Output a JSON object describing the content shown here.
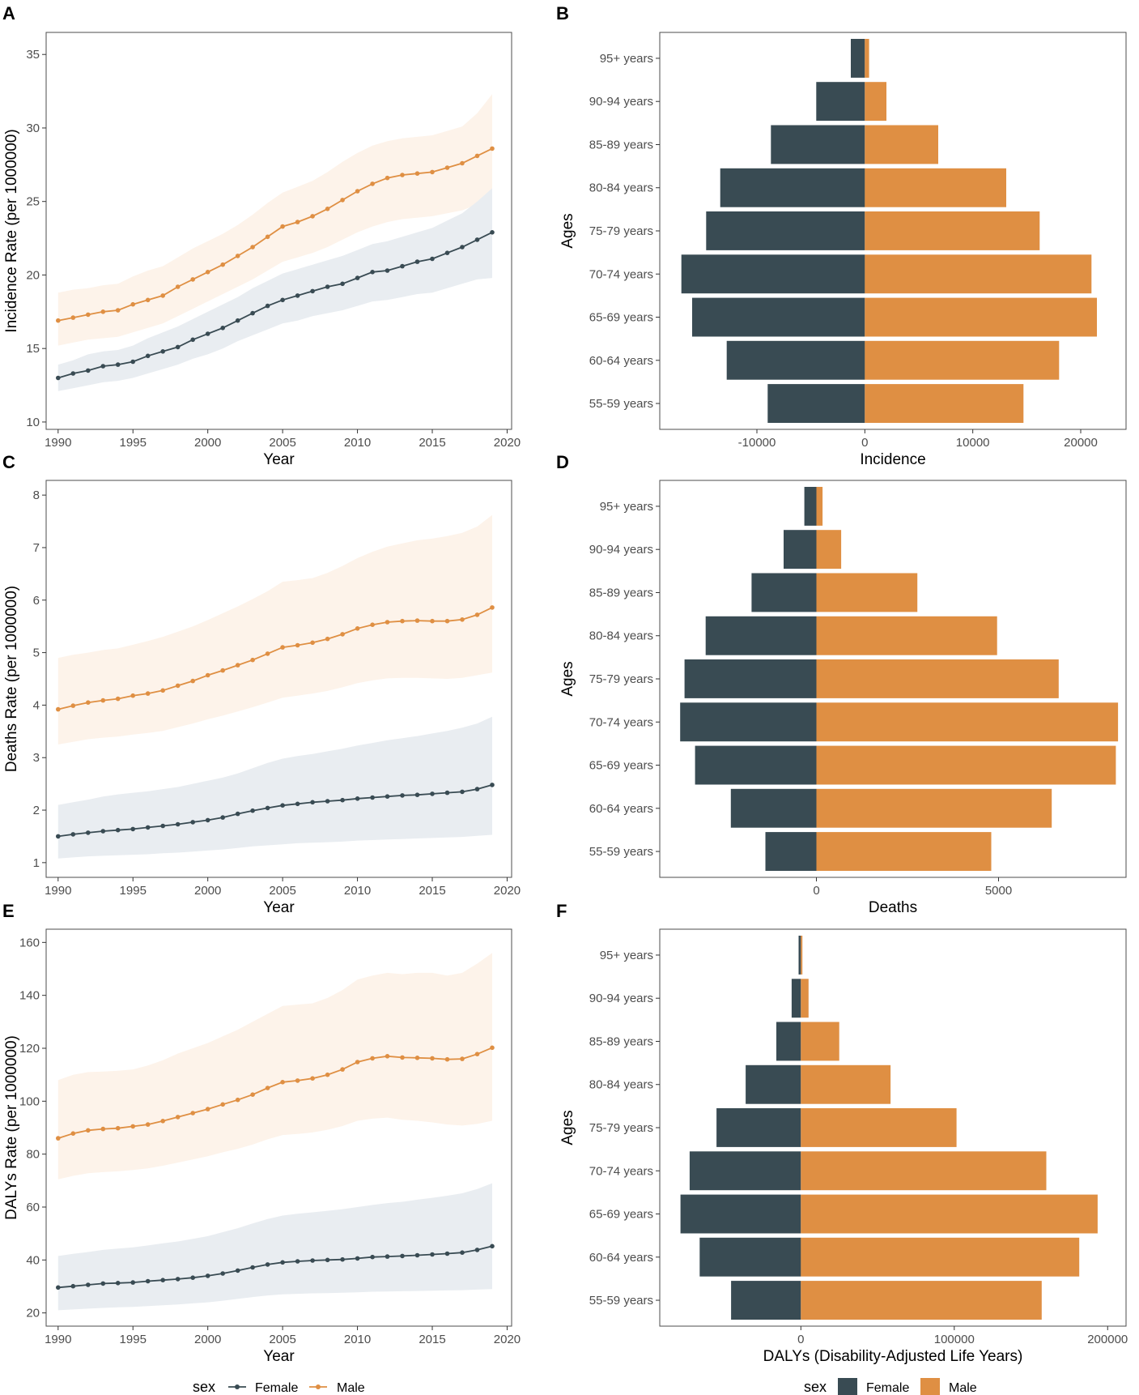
{
  "colors": {
    "female": "#394b53",
    "male": "#df8f43",
    "female_ribbon": "#e9edf1",
    "male_ribbon": "#fdf3ea"
  },
  "legends": {
    "line": {
      "title": "sex",
      "items": [
        "Female",
        "Male"
      ]
    },
    "bar": {
      "title": "sex",
      "items": [
        "Female",
        "Male"
      ]
    }
  },
  "chart_data": [
    {
      "panel": "A",
      "type": "line",
      "xlabel": "Year",
      "ylabel": "Incidence Rate (per 1000000)",
      "xlim": [
        1989.2,
        2020.3
      ],
      "ylim": [
        9.5,
        36.5
      ],
      "xticks": [
        1990,
        1995,
        2000,
        2005,
        2010,
        2015,
        2020
      ],
      "yticks": [
        10,
        15,
        20,
        25,
        30,
        35
      ],
      "x": [
        1990,
        1991,
        1992,
        1993,
        1994,
        1995,
        1996,
        1997,
        1998,
        1999,
        2000,
        2001,
        2002,
        2003,
        2004,
        2005,
        2006,
        2007,
        2008,
        2009,
        2010,
        2011,
        2012,
        2013,
        2014,
        2015,
        2016,
        2017,
        2018,
        2019
      ],
      "series": [
        {
          "name": "Female",
          "values": [
            13.0,
            13.3,
            13.5,
            13.8,
            13.9,
            14.1,
            14.5,
            14.8,
            15.1,
            15.6,
            16.0,
            16.4,
            16.9,
            17.4,
            17.9,
            18.3,
            18.6,
            18.9,
            19.2,
            19.4,
            19.8,
            20.2,
            20.3,
            20.6,
            20.9,
            21.1,
            21.5,
            21.9,
            22.4,
            22.9
          ],
          "lower": [
            12.1,
            12.3,
            12.5,
            12.7,
            12.8,
            13.0,
            13.3,
            13.6,
            13.9,
            14.3,
            14.6,
            15.0,
            15.5,
            15.9,
            16.3,
            16.7,
            16.9,
            17.2,
            17.4,
            17.6,
            17.9,
            18.2,
            18.3,
            18.5,
            18.7,
            18.8,
            19.1,
            19.4,
            19.7,
            19.8
          ],
          "upper": [
            13.9,
            14.2,
            14.6,
            14.8,
            14.9,
            15.2,
            15.7,
            16.1,
            16.5,
            17.0,
            17.5,
            18.0,
            18.5,
            19.1,
            19.6,
            20.1,
            20.4,
            20.7,
            21.0,
            21.3,
            21.7,
            22.1,
            22.3,
            22.6,
            22.9,
            23.2,
            23.7,
            24.2,
            25.0,
            25.9
          ]
        },
        {
          "name": "Male",
          "values": [
            16.9,
            17.1,
            17.3,
            17.5,
            17.6,
            18.0,
            18.3,
            18.6,
            19.2,
            19.7,
            20.2,
            20.7,
            21.3,
            21.9,
            22.6,
            23.3,
            23.6,
            24.0,
            24.5,
            25.1,
            25.7,
            26.2,
            26.6,
            26.8,
            26.9,
            27.0,
            27.3,
            27.6,
            28.1,
            28.6
          ],
          "lower": [
            15.2,
            15.4,
            15.6,
            15.7,
            15.8,
            16.1,
            16.4,
            16.7,
            17.2,
            17.7,
            18.2,
            18.7,
            19.2,
            19.7,
            20.3,
            20.9,
            21.2,
            21.5,
            21.9,
            22.4,
            22.9,
            23.3,
            23.6,
            23.8,
            23.9,
            24.0,
            24.2,
            24.4,
            24.8,
            25.1
          ],
          "upper": [
            18.8,
            19.0,
            19.1,
            19.3,
            19.4,
            19.9,
            20.3,
            20.6,
            21.2,
            21.8,
            22.3,
            22.8,
            23.4,
            24.1,
            24.9,
            25.6,
            26.0,
            26.4,
            27.0,
            27.7,
            28.3,
            28.8,
            29.1,
            29.3,
            29.4,
            29.5,
            29.8,
            30.1,
            31.0,
            32.3
          ]
        }
      ]
    },
    {
      "panel": "B",
      "type": "bar",
      "xlabel": "Incidence",
      "ylabel": "Ages",
      "xlim": [
        -19000,
        24200
      ],
      "xticks": [
        -10000,
        0,
        10000,
        20000
      ],
      "xtick_labels": [
        "-10000",
        "0",
        "10000",
        "20000"
      ],
      "categories": [
        "55-59 years",
        "60-64 years",
        "65-69 years",
        "70-74 years",
        "75-79 years",
        "80-84 years",
        "85-89 years",
        "90-94 years",
        "95+ years"
      ],
      "series": [
        {
          "name": "Female",
          "values": [
            -9000,
            -12800,
            -16000,
            -17000,
            -14700,
            -13400,
            -8700,
            -4500,
            -1300
          ]
        },
        {
          "name": "Male",
          "values": [
            14700,
            18000,
            21500,
            21000,
            16200,
            13100,
            6800,
            2000,
            400
          ]
        }
      ]
    },
    {
      "panel": "C",
      "type": "line",
      "xlabel": "Year",
      "ylabel": "Deaths Rate (per 1000000)",
      "xlim": [
        1989.2,
        2020.3
      ],
      "ylim": [
        0.72,
        8.28
      ],
      "xticks": [
        1990,
        1995,
        2000,
        2005,
        2010,
        2015,
        2020
      ],
      "yticks": [
        1,
        2,
        3,
        4,
        5,
        6,
        7,
        8
      ],
      "x": [
        1990,
        1991,
        1992,
        1993,
        1994,
        1995,
        1996,
        1997,
        1998,
        1999,
        2000,
        2001,
        2002,
        2003,
        2004,
        2005,
        2006,
        2007,
        2008,
        2009,
        2010,
        2011,
        2012,
        2013,
        2014,
        2015,
        2016,
        2017,
        2018,
        2019
      ],
      "series": [
        {
          "name": "Female",
          "values": [
            1.5,
            1.54,
            1.57,
            1.6,
            1.62,
            1.64,
            1.67,
            1.7,
            1.73,
            1.77,
            1.81,
            1.86,
            1.93,
            1.99,
            2.04,
            2.09,
            2.12,
            2.15,
            2.17,
            2.19,
            2.22,
            2.24,
            2.26,
            2.28,
            2.29,
            2.31,
            2.33,
            2.35,
            2.4,
            2.48
          ],
          "lower": [
            1.08,
            1.1,
            1.12,
            1.13,
            1.14,
            1.15,
            1.16,
            1.18,
            1.19,
            1.21,
            1.23,
            1.25,
            1.28,
            1.31,
            1.33,
            1.35,
            1.37,
            1.38,
            1.39,
            1.4,
            1.42,
            1.43,
            1.44,
            1.45,
            1.46,
            1.47,
            1.48,
            1.49,
            1.51,
            1.53
          ],
          "upper": [
            2.1,
            2.15,
            2.2,
            2.26,
            2.3,
            2.33,
            2.36,
            2.4,
            2.44,
            2.5,
            2.56,
            2.62,
            2.7,
            2.8,
            2.9,
            2.98,
            3.03,
            3.07,
            3.12,
            3.17,
            3.23,
            3.28,
            3.33,
            3.37,
            3.41,
            3.46,
            3.51,
            3.57,
            3.65,
            3.78
          ]
        },
        {
          "name": "Male",
          "values": [
            3.92,
            3.99,
            4.05,
            4.09,
            4.12,
            4.18,
            4.22,
            4.28,
            4.37,
            4.46,
            4.57,
            4.66,
            4.76,
            4.86,
            4.98,
            5.1,
            5.14,
            5.19,
            5.26,
            5.35,
            5.46,
            5.53,
            5.58,
            5.6,
            5.61,
            5.6,
            5.6,
            5.63,
            5.72,
            5.86
          ],
          "lower": [
            3.25,
            3.3,
            3.35,
            3.38,
            3.4,
            3.44,
            3.47,
            3.51,
            3.58,
            3.65,
            3.73,
            3.8,
            3.88,
            3.96,
            4.05,
            4.14,
            4.18,
            4.22,
            4.27,
            4.34,
            4.42,
            4.47,
            4.51,
            4.52,
            4.52,
            4.51,
            4.5,
            4.52,
            4.57,
            4.62
          ],
          "upper": [
            4.9,
            4.96,
            5.0,
            5.05,
            5.08,
            5.15,
            5.22,
            5.3,
            5.4,
            5.5,
            5.62,
            5.75,
            5.88,
            6.02,
            6.17,
            6.35,
            6.38,
            6.42,
            6.52,
            6.65,
            6.8,
            6.92,
            7.02,
            7.08,
            7.14,
            7.17,
            7.22,
            7.28,
            7.4,
            7.62
          ]
        }
      ]
    },
    {
      "panel": "D",
      "type": "bar",
      "xlabel": "Deaths",
      "ylabel": "Ages",
      "xlim": [
        -4300,
        8500
      ],
      "xticks": [
        0,
        5000
      ],
      "xtick_labels": [
        "0",
        "5000"
      ],
      "categories": [
        "55-59 years",
        "60-64 years",
        "65-69 years",
        "70-74 years",
        "75-79 years",
        "80-84 years",
        "85-89 years",
        "90-94 years",
        "95+ years"
      ],
      "series": [
        {
          "name": "Female",
          "values": [
            -1400,
            -2350,
            -3330,
            -3740,
            -3620,
            -3040,
            -1780,
            -900,
            -330
          ]
        },
        {
          "name": "Male",
          "values": [
            4800,
            6460,
            8220,
            8280,
            6650,
            4960,
            2770,
            680,
            170
          ]
        }
      ]
    },
    {
      "panel": "E",
      "type": "line",
      "xlabel": "Year",
      "ylabel": "DALYs Rate (per 1000000)",
      "xlim": [
        1989.2,
        2020.3
      ],
      "ylim": [
        15,
        165
      ],
      "xticks": [
        1990,
        1995,
        2000,
        2005,
        2010,
        2015,
        2020
      ],
      "yticks": [
        20,
        40,
        60,
        80,
        100,
        120,
        140,
        160
      ],
      "x": [
        1990,
        1991,
        1992,
        1993,
        1994,
        1995,
        1996,
        1997,
        1998,
        1999,
        2000,
        2001,
        2002,
        2003,
        2004,
        2005,
        2006,
        2007,
        2008,
        2009,
        2010,
        2011,
        2012,
        2013,
        2014,
        2015,
        2016,
        2017,
        2018,
        2019
      ],
      "series": [
        {
          "name": "Female",
          "values": [
            29.6,
            30.1,
            30.6,
            31.1,
            31.3,
            31.5,
            32.0,
            32.4,
            32.8,
            33.3,
            34.0,
            34.9,
            36.0,
            37.2,
            38.3,
            39.1,
            39.5,
            39.8,
            40.0,
            40.2,
            40.6,
            41.1,
            41.3,
            41.5,
            41.8,
            42.1,
            42.4,
            42.8,
            43.8,
            45.2
          ],
          "lower": [
            21.0,
            21.3,
            21.6,
            21.9,
            22.1,
            22.3,
            22.6,
            22.9,
            23.2,
            23.6,
            24.0,
            24.6,
            25.3,
            26.0,
            26.6,
            27.0,
            27.2,
            27.4,
            27.5,
            27.6,
            27.8,
            28.0,
            28.1,
            28.2,
            28.3,
            28.4,
            28.5,
            28.6,
            28.8,
            29.0
          ],
          "upper": [
            41.5,
            42.3,
            43.0,
            43.8,
            44.3,
            44.8,
            45.5,
            46.3,
            47.0,
            48.0,
            49.0,
            50.5,
            52.0,
            53.8,
            55.5,
            56.8,
            57.5,
            58.0,
            58.6,
            59.2,
            60.0,
            60.8,
            61.5,
            62.0,
            62.8,
            63.5,
            64.3,
            65.2,
            66.8,
            69.0
          ]
        },
        {
          "name": "Male",
          "values": [
            86.0,
            87.8,
            89.0,
            89.5,
            89.8,
            90.5,
            91.2,
            92.5,
            94.0,
            95.5,
            97.0,
            98.8,
            100.5,
            102.5,
            105.0,
            107.2,
            107.8,
            108.6,
            110.0,
            112.0,
            114.8,
            116.2,
            117.0,
            116.5,
            116.4,
            116.2,
            115.8,
            116.0,
            117.8,
            120.2
          ],
          "lower": [
            70.5,
            71.8,
            72.8,
            73.2,
            73.5,
            74.0,
            74.6,
            75.6,
            76.8,
            78.0,
            79.2,
            80.7,
            82.0,
            83.6,
            85.6,
            87.2,
            87.6,
            88.2,
            89.2,
            90.6,
            92.6,
            93.4,
            93.8,
            93.0,
            92.6,
            92.0,
            91.2,
            90.8,
            91.4,
            92.6
          ],
          "upper": [
            108.0,
            110.0,
            111.0,
            111.2,
            111.5,
            112.0,
            113.5,
            115.5,
            118.0,
            120.0,
            122.0,
            124.5,
            127.0,
            130.0,
            133.0,
            136.0,
            136.5,
            137.0,
            139.0,
            142.0,
            146.0,
            147.5,
            148.5,
            148.0,
            148.5,
            148.5,
            147.5,
            148.5,
            152.0,
            156.0
          ]
        }
      ]
    },
    {
      "panel": "F",
      "type": "bar",
      "xlabel": "DALYs (Disability-Adjusted Life Years)",
      "ylabel": "Ages",
      "xlim": [
        -92000,
        212000
      ],
      "xticks": [
        0,
        100000,
        200000
      ],
      "xtick_labels": [
        "0",
        "100000",
        "200000"
      ],
      "categories": [
        "55-59 years",
        "60-64 years",
        "65-69 years",
        "70-74 years",
        "75-79 years",
        "80-84 years",
        "85-89 years",
        "90-94 years",
        "95+ years"
      ],
      "series": [
        {
          "name": "Female",
          "values": [
            -45500,
            -66000,
            -78500,
            -72500,
            -55000,
            -36000,
            -16000,
            -6000,
            -1500
          ]
        },
        {
          "name": "Male",
          "values": [
            157000,
            181500,
            193500,
            160000,
            101500,
            58500,
            25000,
            5000,
            1000
          ]
        }
      ]
    }
  ]
}
